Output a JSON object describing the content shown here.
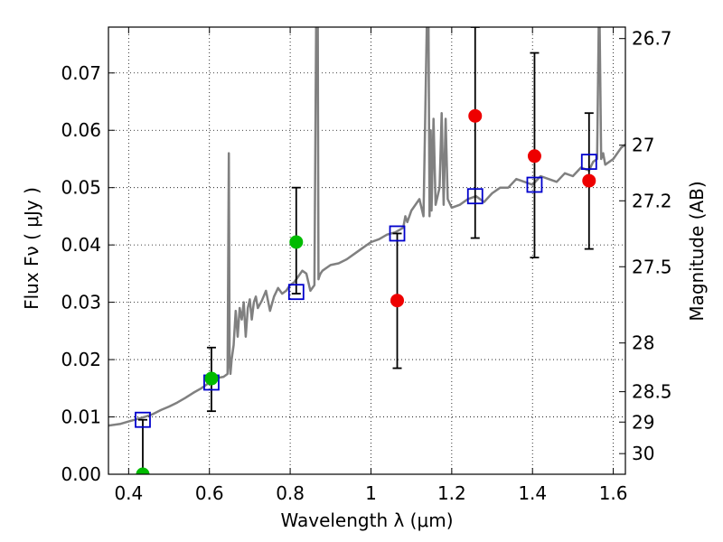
{
  "chart_data": {
    "type": "scatter",
    "xlabel": "Wavelength  λ (μm)",
    "ylabel": "Flux  Fν  ( μJy )",
    "ylabel_right": "Magnitude (AB)",
    "xlim": [
      0.35,
      1.63
    ],
    "ylim": [
      0.0,
      0.078
    ],
    "grid": true,
    "x_ticks": [
      0.4,
      0.6,
      0.8,
      1.0,
      1.2,
      1.4,
      1.6
    ],
    "x_tick_labels": [
      "0.4",
      "0.6",
      "0.8",
      "1",
      "1.2",
      "1.4",
      "1.6"
    ],
    "y_ticks": [
      0.0,
      0.01,
      0.02,
      0.03,
      0.04,
      0.05,
      0.06,
      0.07
    ],
    "y_tick_labels": [
      "0.00",
      "0.01",
      "0.02",
      "0.03",
      "0.04",
      "0.05",
      "0.06",
      "0.07"
    ],
    "right_ticks": [
      {
        "label": "26.7",
        "flux": 0.076
      },
      {
        "label": "27",
        "flux": 0.0574
      },
      {
        "label": "27.2",
        "flux": 0.0477
      },
      {
        "label": "27.5",
        "flux": 0.0362
      },
      {
        "label": "28",
        "flux": 0.0229
      },
      {
        "label": "28.5",
        "flux": 0.0144
      },
      {
        "label": "29",
        "flux": 0.0091
      },
      {
        "label": "30",
        "flux": 0.0036
      }
    ],
    "colors": {
      "model": "#808080",
      "model_photometry": "#0000cc",
      "detection": "#00bb00",
      "observation": "#ee0000",
      "errorbar": "#000000"
    },
    "series": [
      {
        "kind": "line",
        "color": "#808080",
        "x": [
          0.35,
          0.38,
          0.4,
          0.42,
          0.44,
          0.46,
          0.48,
          0.5,
          0.52,
          0.54,
          0.56,
          0.58,
          0.6,
          0.62,
          0.635,
          0.645,
          0.648,
          0.65,
          0.652,
          0.655,
          0.66,
          0.665,
          0.67,
          0.675,
          0.68,
          0.685,
          0.69,
          0.695,
          0.7,
          0.705,
          0.71,
          0.715,
          0.72,
          0.73,
          0.74,
          0.75,
          0.76,
          0.77,
          0.78,
          0.79,
          0.8,
          0.81,
          0.82,
          0.83,
          0.84,
          0.85,
          0.86,
          0.865,
          0.868,
          0.87,
          0.872,
          0.875,
          0.88,
          0.89,
          0.9,
          0.92,
          0.94,
          0.96,
          0.98,
          1.0,
          1.02,
          1.04,
          1.06,
          1.08,
          1.085,
          1.09,
          1.1,
          1.12,
          1.13,
          1.14,
          1.142,
          1.145,
          1.148,
          1.15,
          1.155,
          1.16,
          1.17,
          1.175,
          1.18,
          1.185,
          1.19,
          1.2,
          1.22,
          1.24,
          1.26,
          1.28,
          1.3,
          1.32,
          1.34,
          1.36,
          1.38,
          1.4,
          1.42,
          1.44,
          1.46,
          1.48,
          1.5,
          1.52,
          1.54,
          1.55,
          1.56,
          1.565,
          1.57,
          1.575,
          1.58,
          1.6,
          1.62,
          1.63
        ],
        "y": [
          0.0085,
          0.0088,
          0.0092,
          0.0096,
          0.01,
          0.0105,
          0.0112,
          0.0118,
          0.0125,
          0.0133,
          0.0142,
          0.015,
          0.016,
          0.0168,
          0.017,
          0.0175,
          0.056,
          0.019,
          0.0175,
          0.02,
          0.0225,
          0.0285,
          0.024,
          0.029,
          0.027,
          0.03,
          0.024,
          0.029,
          0.0305,
          0.027,
          0.03,
          0.031,
          0.029,
          0.0303,
          0.032,
          0.0285,
          0.031,
          0.0325,
          0.0315,
          0.032,
          0.033,
          0.0335,
          0.0345,
          0.0355,
          0.035,
          0.032,
          0.033,
          0.085,
          0.085,
          0.034,
          0.0345,
          0.035,
          0.0355,
          0.036,
          0.0365,
          0.0368,
          0.0375,
          0.0385,
          0.0395,
          0.0405,
          0.041,
          0.0418,
          0.0422,
          0.043,
          0.045,
          0.044,
          0.046,
          0.048,
          0.045,
          0.085,
          0.085,
          0.045,
          0.06,
          0.046,
          0.062,
          0.047,
          0.05,
          0.063,
          0.047,
          0.062,
          0.048,
          0.0465,
          0.047,
          0.048,
          0.0485,
          0.0475,
          0.049,
          0.05,
          0.05,
          0.0515,
          0.051,
          0.0505,
          0.052,
          0.0515,
          0.051,
          0.0525,
          0.052,
          0.0535,
          0.053,
          0.0545,
          0.055,
          0.085,
          0.055,
          0.056,
          0.054,
          0.055,
          0.057,
          0.0575
        ]
      },
      {
        "kind": "open-square",
        "color": "#0000cc",
        "x": [
          0.435,
          0.605,
          0.815,
          1.065,
          1.258,
          1.405,
          1.54
        ],
        "y": [
          0.0095,
          0.016,
          0.0318,
          0.042,
          0.0485,
          0.0505,
          0.0545
        ]
      },
      {
        "kind": "green-circle",
        "color": "#00bb00",
        "x": [
          0.435,
          0.605,
          0.815
        ],
        "y": [
          0.0,
          0.0167,
          0.0405
        ]
      },
      {
        "kind": "red-circle",
        "color": "#ee0000",
        "x": [
          1.065,
          1.258,
          1.405,
          1.54
        ],
        "y": [
          0.0303,
          0.0625,
          0.0555,
          0.0512
        ]
      },
      {
        "kind": "errorbar",
        "color": "#000000",
        "x": [
          0.435,
          0.605,
          0.815,
          1.065,
          1.258,
          1.405,
          1.54
        ],
        "low": [
          0.0,
          0.011,
          0.0315,
          0.0185,
          0.0412,
          0.0378,
          0.0393
        ],
        "high": [
          0.0095,
          0.0221,
          0.05,
          0.042,
          0.078,
          0.0735,
          0.063
        ]
      }
    ]
  }
}
